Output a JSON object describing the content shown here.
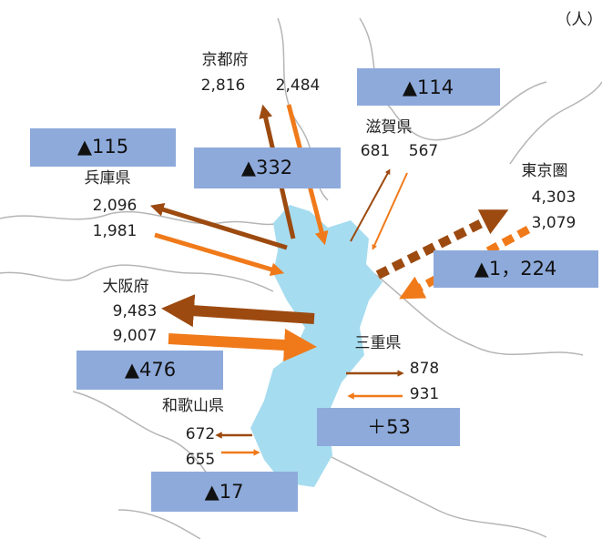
{
  "unit": "（人）",
  "regions": [
    {
      "name": "京都府",
      "outflow": "2,816",
      "inflow": "2,484",
      "net": "▲332"
    },
    {
      "name": "滋賀県",
      "outflow": "681",
      "inflow": "567",
      "net": "▲114"
    },
    {
      "name": "東京圏",
      "outflow": "4,303",
      "inflow": "3,079",
      "net": "▲1，224"
    },
    {
      "name": "兵庫県",
      "outflow": "2,096",
      "inflow": "1,981",
      "net": "▲115"
    },
    {
      "name": "大阪府",
      "outflow": "9,483",
      "inflow": "9,007",
      "net": "▲476"
    },
    {
      "name": "三重県",
      "outflow": "878",
      "inflow": "931",
      "net": "＋53"
    },
    {
      "name": "和歌山県",
      "outflow": "672",
      "inflow": "655",
      "net": "▲17"
    }
  ]
}
